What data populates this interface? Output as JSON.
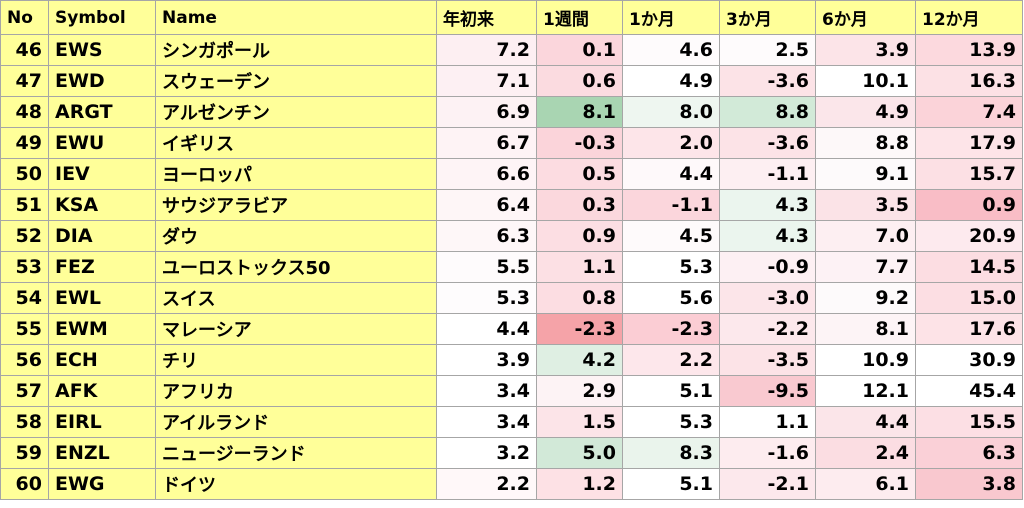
{
  "table": {
    "headers": [
      "No",
      "Symbol",
      "Name",
      "年初来",
      "1週間",
      "1か月",
      "3か月",
      "6か月",
      "12か月"
    ],
    "rows": [
      {
        "no": "46",
        "symbol": "EWS",
        "name": "シンガポール",
        "values": [
          "7.2",
          "0.1",
          "4.6",
          "2.5",
          "3.9",
          "13.9"
        ],
        "colors": [
          "#fdeff2",
          "#fbd6dc",
          "#fefbfc",
          "#fefbfc",
          "#fce4e8",
          "#fcd9de"
        ]
      },
      {
        "no": "47",
        "symbol": "EWD",
        "name": "スウェーデン",
        "values": [
          "7.1",
          "0.6",
          "4.9",
          "-3.6",
          "10.1",
          "16.3"
        ],
        "colors": [
          "#fdf0f3",
          "#fbdbe0",
          "#ffffff",
          "#fce3e7",
          "#ffffff",
          "#fce1e5"
        ]
      },
      {
        "no": "48",
        "symbol": "ARGT",
        "name": "アルゼンチン",
        "values": [
          "6.9",
          "8.1",
          "8.0",
          "8.8",
          "4.9",
          "7.4"
        ],
        "colors": [
          "#fdf2f4",
          "#a9d5b2",
          "#eef6f0",
          "#d2ead8",
          "#fbe6ea",
          "#fbd3d9"
        ]
      },
      {
        "no": "49",
        "symbol": "EWU",
        "name": "イギリス",
        "values": [
          "6.7",
          "-0.3",
          "2.0",
          "-3.6",
          "8.8",
          "17.9"
        ],
        "colors": [
          "#fef3f5",
          "#fbd4da",
          "#fde5e9",
          "#fce3e7",
          "#fdf8f9",
          "#fde4e8"
        ]
      },
      {
        "no": "50",
        "symbol": "IEV",
        "name": "ヨーロッパ",
        "values": [
          "6.6",
          "0.5",
          "4.4",
          "-1.1",
          "9.1",
          "15.7"
        ],
        "colors": [
          "#fef4f6",
          "#fcdce1",
          "#fef9fa",
          "#fdeff2",
          "#fdfafb",
          "#fce0e4"
        ]
      },
      {
        "no": "51",
        "symbol": "KSA",
        "name": "サウジアラビア",
        "values": [
          "6.4",
          "0.3",
          "-1.1",
          "4.3",
          "3.5",
          "0.9"
        ],
        "colors": [
          "#fef6f7",
          "#fbd8dd",
          "#fbd6dc",
          "#ebf5ee",
          "#fbe3e7",
          "#f9bdc6"
        ]
      },
      {
        "no": "52",
        "symbol": "DIA",
        "name": "ダウ",
        "values": [
          "6.3",
          "0.9",
          "4.5",
          "4.3",
          "7.0",
          "20.9"
        ],
        "colors": [
          "#fef7f8",
          "#fcdee3",
          "#fefafb",
          "#ebf5ee",
          "#fdeff2",
          "#fdeaee"
        ]
      },
      {
        "no": "53",
        "symbol": "FEZ",
        "name": "ユーロストックス50",
        "values": [
          "5.5",
          "1.1",
          "5.3",
          "-0.9",
          "7.7",
          "14.5"
        ],
        "colors": [
          "#fefbfc",
          "#fce0e4",
          "#ffffff",
          "#fdf0f3",
          "#fdf2f5",
          "#fcdde2"
        ]
      },
      {
        "no": "54",
        "symbol": "EWL",
        "name": "スイス",
        "values": [
          "5.3",
          "0.8",
          "5.6",
          "-3.0",
          "9.2",
          "15.0"
        ],
        "colors": [
          "#fefcfd",
          "#fcdde2",
          "#ffffff",
          "#fce5e9",
          "#fdfafb",
          "#fcdee3"
        ]
      },
      {
        "no": "55",
        "symbol": "EWM",
        "name": "マレーシア",
        "values": [
          "4.4",
          "-2.3",
          "-2.3",
          "-2.2",
          "8.1",
          "17.6"
        ],
        "colors": [
          "#ffffff",
          "#f5a3a8",
          "#fbcdd4",
          "#fce8ec",
          "#fdf4f6",
          "#fde3e7"
        ]
      },
      {
        "no": "56",
        "symbol": "ECH",
        "name": "チリ",
        "values": [
          "3.9",
          "4.2",
          "2.2",
          "-3.5",
          "10.9",
          "30.9"
        ],
        "colors": [
          "#ffffff",
          "#dfefe3",
          "#fde7eb",
          "#fce3e7",
          "#ffffff",
          "#ffffff"
        ]
      },
      {
        "no": "57",
        "symbol": "AFK",
        "name": "アフリカ",
        "values": [
          "3.4",
          "2.9",
          "5.1",
          "-9.5",
          "12.1",
          "45.4"
        ],
        "colors": [
          "#ffffff",
          "#fdf3f5",
          "#ffffff",
          "#f9c9d0",
          "#ffffff",
          "#ffffff"
        ]
      },
      {
        "no": "58",
        "symbol": "EIRL",
        "name": "アイルランド",
        "values": [
          "3.4",
          "1.5",
          "5.3",
          "1.1",
          "4.4",
          "15.5"
        ],
        "colors": [
          "#ffffff",
          "#fce4e8",
          "#ffffff",
          "#ffffff",
          "#fbe5e9",
          "#fcdfe4"
        ]
      },
      {
        "no": "59",
        "symbol": "ENZL",
        "name": "ニュージーランド",
        "values": [
          "3.2",
          "5.0",
          "8.3",
          "-1.6",
          "2.4",
          "6.3"
        ],
        "colors": [
          "#ffffff",
          "#d2e9d8",
          "#eaf4ec",
          "#fdecef",
          "#fbdde2",
          "#fad0d7"
        ]
      },
      {
        "no": "60",
        "symbol": "EWG",
        "name": "ドイツ",
        "values": [
          "2.2",
          "1.2",
          "5.1",
          "-2.1",
          "6.1",
          "3.8"
        ],
        "colors": [
          "#fff8f9",
          "#fde1e5",
          "#ffffff",
          "#fce8ec",
          "#fdecef",
          "#f9c8cf"
        ]
      }
    ]
  }
}
